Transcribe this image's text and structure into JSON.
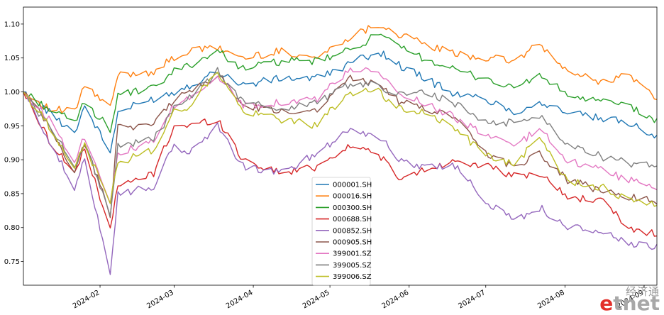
{
  "chart_data": {
    "type": "line",
    "x_start": "2024-01-02",
    "x_end": "2024-09-06",
    "ylim": [
      0.715,
      1.125
    ],
    "y_ticks": [
      "0.75",
      "0.80",
      "0.85",
      "0.90",
      "0.95",
      "1.00",
      "1.05",
      "1.10"
    ],
    "x_ticks": [
      {
        "date": "2024-02-01",
        "label": "2024-02"
      },
      {
        "date": "2024-03-01",
        "label": "2024-03"
      },
      {
        "date": "2024-04-01",
        "label": "2024-04"
      },
      {
        "date": "2024-05-01",
        "label": "2024-05"
      },
      {
        "date": "2024-06-01",
        "label": "2024-06"
      },
      {
        "date": "2024-07-01",
        "label": "2024-07"
      },
      {
        "date": "2024-08-01",
        "label": "2024-08"
      },
      {
        "date": "2024-09-01",
        "label": "2024-09"
      }
    ],
    "legend_position": "center-bottom",
    "series": [
      {
        "name": "000001.SH",
        "color": "#1f77b4",
        "points": [
          [
            "2024-01-02",
            1.0
          ],
          [
            "2024-01-12",
            0.97
          ],
          [
            "2024-01-22",
            0.94
          ],
          [
            "2024-01-26",
            0.98
          ],
          [
            "2024-02-05",
            0.91
          ],
          [
            "2024-02-08",
            0.97
          ],
          [
            "2024-02-22",
            0.99
          ],
          [
            "2024-03-01",
            1.0
          ],
          [
            "2024-03-07",
            1.01
          ],
          [
            "2024-03-18",
            1.03
          ],
          [
            "2024-03-28",
            1.01
          ],
          [
            "2024-04-12",
            1.02
          ],
          [
            "2024-04-26",
            1.02
          ],
          [
            "2024-05-08",
            1.04
          ],
          [
            "2024-05-20",
            1.06
          ],
          [
            "2024-05-28",
            1.04
          ],
          [
            "2024-06-07",
            1.02
          ],
          [
            "2024-06-20",
            0.995
          ],
          [
            "2024-07-01",
            0.99
          ],
          [
            "2024-07-12",
            0.97
          ],
          [
            "2024-07-22",
            0.985
          ],
          [
            "2024-08-02",
            0.97
          ],
          [
            "2024-08-15",
            0.96
          ],
          [
            "2024-08-26",
            0.955
          ],
          [
            "2024-09-06",
            0.935
          ]
        ]
      },
      {
        "name": "000016.SH",
        "color": "#ff7f0e",
        "points": [
          [
            "2024-01-02",
            1.0
          ],
          [
            "2024-01-12",
            0.975
          ],
          [
            "2024-01-22",
            0.97
          ],
          [
            "2024-01-26",
            1.01
          ],
          [
            "2024-02-05",
            0.975
          ],
          [
            "2024-02-08",
            1.025
          ],
          [
            "2024-02-22",
            1.03
          ],
          [
            "2024-03-01",
            1.05
          ],
          [
            "2024-03-07",
            1.06
          ],
          [
            "2024-03-18",
            1.065
          ],
          [
            "2024-03-28",
            1.05
          ],
          [
            "2024-04-12",
            1.06
          ],
          [
            "2024-04-26",
            1.05
          ],
          [
            "2024-05-08",
            1.08
          ],
          [
            "2024-05-20",
            1.1
          ],
          [
            "2024-05-28",
            1.085
          ],
          [
            "2024-06-07",
            1.07
          ],
          [
            "2024-06-20",
            1.055
          ],
          [
            "2024-07-01",
            1.05
          ],
          [
            "2024-07-12",
            1.045
          ],
          [
            "2024-07-22",
            1.07
          ],
          [
            "2024-08-02",
            1.03
          ],
          [
            "2024-08-15",
            1.015
          ],
          [
            "2024-08-26",
            1.025
          ],
          [
            "2024-09-06",
            0.99
          ]
        ]
      },
      {
        "name": "000300.SH",
        "color": "#2ca02c",
        "points": [
          [
            "2024-01-02",
            1.0
          ],
          [
            "2024-01-12",
            0.975
          ],
          [
            "2024-01-22",
            0.955
          ],
          [
            "2024-01-26",
            0.985
          ],
          [
            "2024-02-05",
            0.945
          ],
          [
            "2024-02-08",
            0.995
          ],
          [
            "2024-02-22",
            1.005
          ],
          [
            "2024-03-01",
            1.03
          ],
          [
            "2024-03-07",
            1.04
          ],
          [
            "2024-03-18",
            1.06
          ],
          [
            "2024-03-28",
            1.035
          ],
          [
            "2024-04-12",
            1.045
          ],
          [
            "2024-04-26",
            1.045
          ],
          [
            "2024-05-08",
            1.06
          ],
          [
            "2024-05-20",
            1.085
          ],
          [
            "2024-05-28",
            1.065
          ],
          [
            "2024-06-07",
            1.05
          ],
          [
            "2024-06-20",
            1.03
          ],
          [
            "2024-07-01",
            1.02
          ],
          [
            "2024-07-12",
            1.005
          ],
          [
            "2024-07-22",
            1.025
          ],
          [
            "2024-08-02",
            0.995
          ],
          [
            "2024-08-15",
            0.985
          ],
          [
            "2024-08-26",
            0.98
          ],
          [
            "2024-09-06",
            0.955
          ]
        ]
      },
      {
        "name": "000688.SH",
        "color": "#d62728",
        "points": [
          [
            "2024-01-02",
            1.0
          ],
          [
            "2024-01-12",
            0.93
          ],
          [
            "2024-01-22",
            0.88
          ],
          [
            "2024-01-26",
            0.915
          ],
          [
            "2024-02-05",
            0.8
          ],
          [
            "2024-02-08",
            0.86
          ],
          [
            "2024-02-22",
            0.88
          ],
          [
            "2024-03-01",
            0.95
          ],
          [
            "2024-03-07",
            0.95
          ],
          [
            "2024-03-18",
            0.96
          ],
          [
            "2024-03-28",
            0.9
          ],
          [
            "2024-04-12",
            0.88
          ],
          [
            "2024-04-26",
            0.89
          ],
          [
            "2024-05-08",
            0.92
          ],
          [
            "2024-05-20",
            0.91
          ],
          [
            "2024-05-28",
            0.87
          ],
          [
            "2024-06-07",
            0.885
          ],
          [
            "2024-06-20",
            0.9
          ],
          [
            "2024-07-01",
            0.89
          ],
          [
            "2024-07-12",
            0.875
          ],
          [
            "2024-07-22",
            0.88
          ],
          [
            "2024-08-02",
            0.845
          ],
          [
            "2024-08-15",
            0.84
          ],
          [
            "2024-08-26",
            0.8
          ],
          [
            "2024-09-06",
            0.79
          ]
        ]
      },
      {
        "name": "000852.SH",
        "color": "#9467bd",
        "points": [
          [
            "2024-01-02",
            1.0
          ],
          [
            "2024-01-12",
            0.93
          ],
          [
            "2024-01-22",
            0.855
          ],
          [
            "2024-01-26",
            0.9
          ],
          [
            "2024-02-05",
            0.735
          ],
          [
            "2024-02-08",
            0.85
          ],
          [
            "2024-02-22",
            0.86
          ],
          [
            "2024-03-01",
            0.92
          ],
          [
            "2024-03-07",
            0.91
          ],
          [
            "2024-03-18",
            0.95
          ],
          [
            "2024-03-28",
            0.89
          ],
          [
            "2024-04-12",
            0.88
          ],
          [
            "2024-04-26",
            0.91
          ],
          [
            "2024-05-08",
            0.945
          ],
          [
            "2024-05-20",
            0.935
          ],
          [
            "2024-05-28",
            0.9
          ],
          [
            "2024-06-07",
            0.89
          ],
          [
            "2024-06-20",
            0.89
          ],
          [
            "2024-07-01",
            0.84
          ],
          [
            "2024-07-12",
            0.81
          ],
          [
            "2024-07-22",
            0.83
          ],
          [
            "2024-08-02",
            0.8
          ],
          [
            "2024-08-15",
            0.795
          ],
          [
            "2024-08-26",
            0.775
          ],
          [
            "2024-09-06",
            0.77
          ]
        ]
      },
      {
        "name": "000905.SH",
        "color": "#8c564b",
        "points": [
          [
            "2024-01-02",
            1.0
          ],
          [
            "2024-01-12",
            0.95
          ],
          [
            "2024-01-22",
            0.88
          ],
          [
            "2024-01-26",
            0.925
          ],
          [
            "2024-02-05",
            0.82
          ],
          [
            "2024-02-08",
            0.95
          ],
          [
            "2024-02-22",
            0.95
          ],
          [
            "2024-03-01",
            0.99
          ],
          [
            "2024-03-07",
            1.0
          ],
          [
            "2024-03-18",
            1.025
          ],
          [
            "2024-03-28",
            0.98
          ],
          [
            "2024-04-12",
            0.97
          ],
          [
            "2024-04-26",
            0.975
          ],
          [
            "2024-05-08",
            1.02
          ],
          [
            "2024-05-20",
            1.015
          ],
          [
            "2024-05-28",
            0.985
          ],
          [
            "2024-06-07",
            0.975
          ],
          [
            "2024-06-20",
            0.96
          ],
          [
            "2024-07-01",
            0.91
          ],
          [
            "2024-07-12",
            0.89
          ],
          [
            "2024-07-22",
            0.91
          ],
          [
            "2024-08-02",
            0.87
          ],
          [
            "2024-08-15",
            0.855
          ],
          [
            "2024-08-26",
            0.845
          ],
          [
            "2024-09-06",
            0.84
          ]
        ]
      },
      {
        "name": "399001.SZ",
        "color": "#e377c2",
        "points": [
          [
            "2024-01-02",
            1.0
          ],
          [
            "2024-01-12",
            0.96
          ],
          [
            "2024-01-22",
            0.9
          ],
          [
            "2024-01-26",
            0.935
          ],
          [
            "2024-02-05",
            0.84
          ],
          [
            "2024-02-08",
            0.91
          ],
          [
            "2024-02-22",
            0.925
          ],
          [
            "2024-03-01",
            0.98
          ],
          [
            "2024-03-07",
            0.99
          ],
          [
            "2024-03-18",
            1.025
          ],
          [
            "2024-03-28",
            0.98
          ],
          [
            "2024-04-12",
            0.985
          ],
          [
            "2024-04-26",
            0.99
          ],
          [
            "2024-05-08",
            1.03
          ],
          [
            "2024-05-20",
            1.03
          ],
          [
            "2024-05-28",
            0.995
          ],
          [
            "2024-06-07",
            0.985
          ],
          [
            "2024-06-20",
            0.96
          ],
          [
            "2024-07-01",
            0.935
          ],
          [
            "2024-07-12",
            0.92
          ],
          [
            "2024-07-22",
            0.945
          ],
          [
            "2024-08-02",
            0.9
          ],
          [
            "2024-08-15",
            0.885
          ],
          [
            "2024-08-26",
            0.87
          ],
          [
            "2024-09-06",
            0.86
          ]
        ]
      },
      {
        "name": "399005.SZ",
        "color": "#7f7f7f",
        "points": [
          [
            "2024-01-02",
            1.0
          ],
          [
            "2024-01-12",
            0.95
          ],
          [
            "2024-01-22",
            0.89
          ],
          [
            "2024-01-26",
            0.925
          ],
          [
            "2024-02-05",
            0.82
          ],
          [
            "2024-02-08",
            0.92
          ],
          [
            "2024-02-22",
            0.93
          ],
          [
            "2024-03-01",
            0.975
          ],
          [
            "2024-03-07",
            0.99
          ],
          [
            "2024-03-18",
            1.03
          ],
          [
            "2024-03-28",
            0.985
          ],
          [
            "2024-04-12",
            0.975
          ],
          [
            "2024-04-26",
            0.985
          ],
          [
            "2024-05-08",
            1.01
          ],
          [
            "2024-05-20",
            1.01
          ],
          [
            "2024-05-28",
            0.995
          ],
          [
            "2024-06-07",
            1.0
          ],
          [
            "2024-06-20",
            0.98
          ],
          [
            "2024-07-01",
            0.955
          ],
          [
            "2024-07-12",
            0.955
          ],
          [
            "2024-07-22",
            0.965
          ],
          [
            "2024-08-02",
            0.925
          ],
          [
            "2024-08-15",
            0.905
          ],
          [
            "2024-08-26",
            0.895
          ],
          [
            "2024-09-06",
            0.89
          ]
        ]
      },
      {
        "name": "399006.SZ",
        "color": "#bcbd22",
        "points": [
          [
            "2024-01-02",
            1.0
          ],
          [
            "2024-01-12",
            0.95
          ],
          [
            "2024-01-22",
            0.89
          ],
          [
            "2024-01-26",
            0.92
          ],
          [
            "2024-02-05",
            0.84
          ],
          [
            "2024-02-08",
            0.895
          ],
          [
            "2024-02-22",
            0.915
          ],
          [
            "2024-03-01",
            0.97
          ],
          [
            "2024-03-07",
            0.98
          ],
          [
            "2024-03-18",
            1.03
          ],
          [
            "2024-03-28",
            0.97
          ],
          [
            "2024-04-12",
            0.96
          ],
          [
            "2024-04-26",
            0.95
          ],
          [
            "2024-05-08",
            1.0
          ],
          [
            "2024-05-20",
            1.0
          ],
          [
            "2024-05-28",
            0.975
          ],
          [
            "2024-06-07",
            0.97
          ],
          [
            "2024-06-20",
            0.945
          ],
          [
            "2024-07-01",
            0.905
          ],
          [
            "2024-07-12",
            0.895
          ],
          [
            "2024-07-22",
            0.93
          ],
          [
            "2024-08-02",
            0.87
          ],
          [
            "2024-08-15",
            0.86
          ],
          [
            "2024-08-26",
            0.84
          ],
          [
            "2024-09-06",
            0.835
          ]
        ]
      }
    ]
  },
  "watermark": {
    "cn": "经济通",
    "en_e": "e",
    "en_rest": "tnet"
  }
}
